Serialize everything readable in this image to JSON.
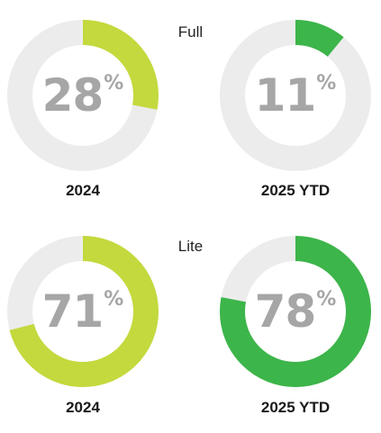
{
  "chart_data": [
    {
      "type": "pie",
      "section": "Full",
      "category": "2024",
      "value": 28,
      "display": "28",
      "unit": "%",
      "color": "#c4d93d",
      "track_color": "#ececec"
    },
    {
      "type": "pie",
      "section": "Full",
      "category": "2025 YTD",
      "value": 11,
      "display": "11",
      "unit": "%",
      "color": "#3cb54a",
      "track_color": "#ececec"
    },
    {
      "type": "pie",
      "section": "Lite",
      "category": "2024",
      "value": 71,
      "display": "71",
      "unit": "%",
      "color": "#c4d93d",
      "track_color": "#ececec"
    },
    {
      "type": "pie",
      "section": "Lite",
      "category": "2025 YTD",
      "value": 78,
      "display": "78",
      "unit": "%",
      "color": "#3cb54a",
      "track_color": "#ececec"
    }
  ],
  "sections": [
    "Full",
    "Lite"
  ]
}
